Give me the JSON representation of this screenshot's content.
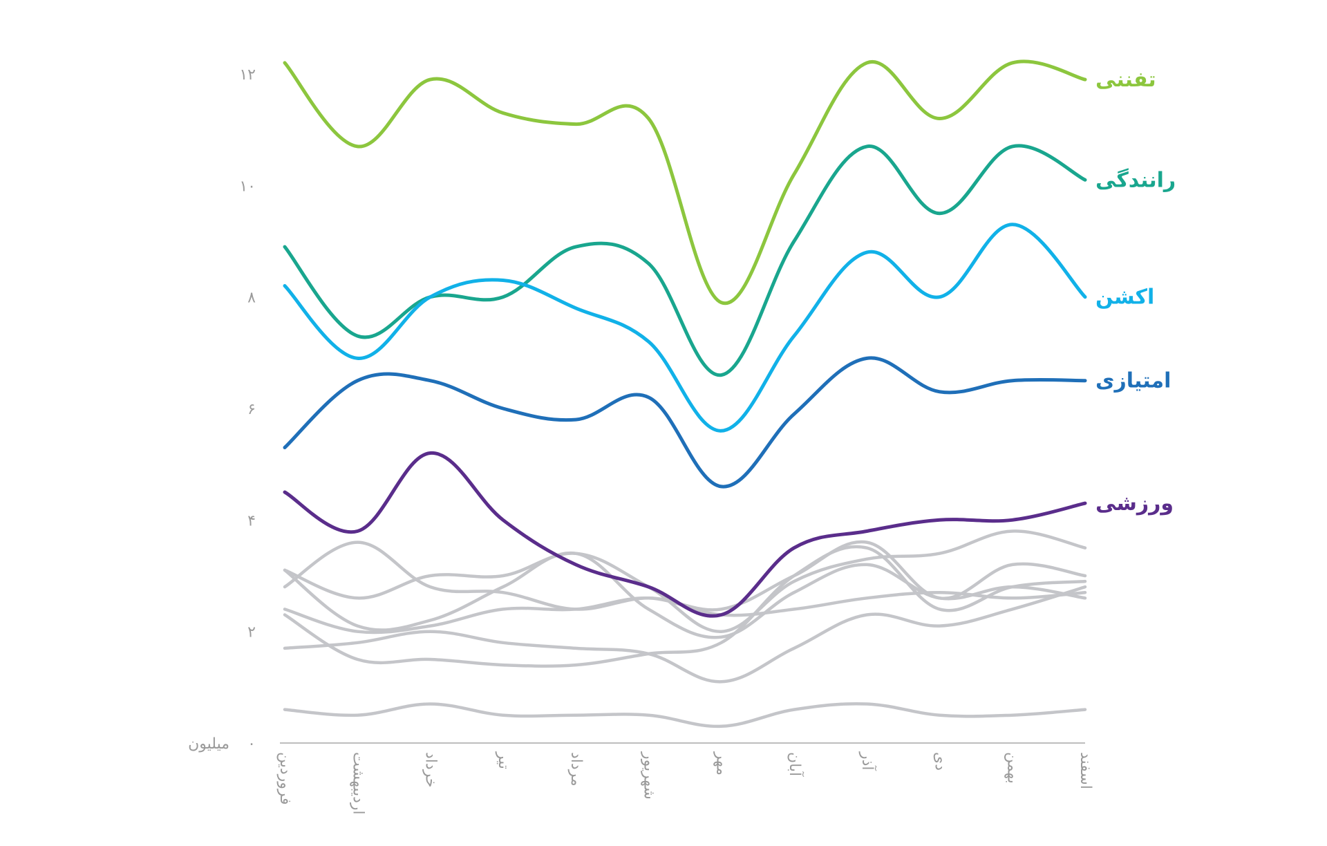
{
  "chart_data": {
    "type": "line",
    "title": "",
    "xlabel": "",
    "ylabel": "",
    "y_unit_label": "میلیون",
    "ylim": [
      0,
      12
    ],
    "y_ticks": [
      0,
      2,
      4,
      6,
      8,
      10,
      12
    ],
    "y_tick_labels": [
      "۰",
      "۲",
      "۴",
      "۶",
      "۸",
      "۱۰",
      "۱۲"
    ],
    "categories": [
      "فروردین",
      "اردیبهشت",
      "خرداد",
      "تیر",
      "مرداد",
      "شهریور",
      "مهر",
      "آبان",
      "آذر",
      "دی",
      "بهمن",
      "اسفند"
    ],
    "grid": false,
    "series": [
      {
        "name": "تفننی",
        "color": "#8cc63e",
        "labeled": true,
        "values": [
          12.2,
          10.7,
          11.9,
          11.3,
          11.1,
          11.2,
          7.9,
          10.2,
          12.2,
          11.2,
          12.2,
          11.9
        ]
      },
      {
        "name": "رانندگی",
        "color": "#19a68e",
        "labeled": true,
        "values": [
          8.9,
          7.3,
          8.0,
          8.0,
          8.9,
          8.6,
          6.6,
          9.0,
          10.7,
          9.5,
          10.7,
          10.1
        ]
      },
      {
        "name": "اکشن",
        "color": "#11b1e8",
        "labeled": true,
        "values": [
          8.2,
          6.9,
          8.0,
          8.3,
          7.8,
          7.2,
          5.6,
          7.3,
          8.8,
          8.0,
          9.3,
          8.0
        ]
      },
      {
        "name": "امتیازی",
        "color": "#1f6fb8",
        "labeled": true,
        "values": [
          5.3,
          6.5,
          6.5,
          6.0,
          5.8,
          6.2,
          4.6,
          5.9,
          6.9,
          6.3,
          6.5,
          6.5
        ]
      },
      {
        "name": "ورزشی",
        "color": "#5a2d8b",
        "labeled": true,
        "values": [
          4.5,
          3.8,
          5.2,
          4.0,
          3.2,
          2.8,
          2.3,
          3.5,
          3.8,
          4.0,
          4.0,
          4.3
        ]
      },
      {
        "name": "",
        "color": "#c4c5c9",
        "labeled": false,
        "values": [
          3.1,
          2.6,
          3.0,
          3.0,
          3.4,
          2.8,
          2.0,
          2.9,
          3.3,
          3.4,
          3.8,
          3.5
        ]
      },
      {
        "name": "",
        "color": "#c4c5c9",
        "labeled": false,
        "values": [
          2.8,
          3.6,
          2.8,
          2.7,
          2.4,
          2.6,
          2.4,
          3.0,
          3.6,
          2.6,
          3.2,
          3.0
        ]
      },
      {
        "name": "",
        "color": "#c4c5c9",
        "labeled": false,
        "values": [
          3.1,
          2.1,
          2.2,
          2.8,
          3.4,
          2.4,
          1.9,
          2.7,
          3.2,
          2.6,
          2.8,
          2.6
        ]
      },
      {
        "name": "",
        "color": "#c4c5c9",
        "labeled": false,
        "values": [
          2.4,
          2.0,
          2.1,
          2.4,
          2.4,
          2.6,
          2.3,
          2.4,
          2.6,
          2.7,
          2.6,
          2.7
        ]
      },
      {
        "name": "",
        "color": "#c4c5c9",
        "labeled": false,
        "values": [
          2.3,
          1.5,
          1.5,
          1.4,
          1.4,
          1.6,
          1.8,
          3.0,
          3.5,
          2.4,
          2.8,
          2.9
        ]
      },
      {
        "name": "",
        "color": "#c4c5c9",
        "labeled": false,
        "values": [
          1.7,
          1.8,
          2.0,
          1.8,
          1.7,
          1.6,
          1.1,
          1.7,
          2.3,
          2.1,
          2.4,
          2.8
        ]
      },
      {
        "name": "",
        "color": "#c4c5c9",
        "labeled": false,
        "values": [
          0.6,
          0.5,
          0.7,
          0.5,
          0.5,
          0.5,
          0.3,
          0.6,
          0.7,
          0.5,
          0.5,
          0.6
        ]
      }
    ]
  }
}
